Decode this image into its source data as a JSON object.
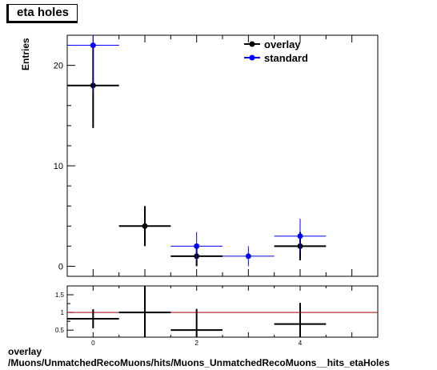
{
  "title": "eta holes",
  "footer": {
    "line1": "overlay",
    "line2": "/Muons/UnmatchedRecoMuons/hits/Muons_UnmatchedRecoMuons__hits_etaHoles"
  },
  "chart_data": [
    {
      "type": "scatter",
      "ylabel": "Entries",
      "xlim": [
        -0.5,
        5.5
      ],
      "ylim": [
        -1,
        23
      ],
      "x_ticks": [
        "0",
        "2",
        "4"
      ],
      "y_ticks": [
        "0",
        "10",
        "20"
      ],
      "legend_position": "top-right",
      "series": [
        {
          "name": "overlay",
          "color": "#000000",
          "points": [
            {
              "x": 0,
              "y": 18,
              "err": 4.24
            },
            {
              "x": 1,
              "y": 4,
              "err": 2.0
            },
            {
              "x": 2,
              "y": 1,
              "err": 1.0
            },
            {
              "x": 4,
              "y": 2,
              "err": 1.41
            }
          ]
        },
        {
          "name": "standard",
          "color": "#0000ff",
          "points": [
            {
              "x": 0,
              "y": 22,
              "err": 4.69
            },
            {
              "x": 2,
              "y": 2,
              "err": 1.41
            },
            {
              "x": 3,
              "y": 1,
              "err": 1.0
            },
            {
              "x": 4,
              "y": 3,
              "err": 1.73
            }
          ]
        }
      ]
    },
    {
      "type": "scatter",
      "xlim": [
        -0.5,
        5.5
      ],
      "ylim": [
        0.3,
        1.75
      ],
      "x_ticks": [
        "0",
        "2",
        "4"
      ],
      "y_ticks": [
        "0.5",
        "1",
        "1.5"
      ],
      "reference_line": 1,
      "reference_color": "#aa0000",
      "points": [
        {
          "x": 0,
          "y": 0.82,
          "err": 0.27
        },
        {
          "x": 1,
          "y": 1.0,
          "err": 0.9
        },
        {
          "x": 2,
          "y": 0.5,
          "err": 0.6
        },
        {
          "x": 4,
          "y": 0.67,
          "err": 0.6
        }
      ]
    }
  ]
}
